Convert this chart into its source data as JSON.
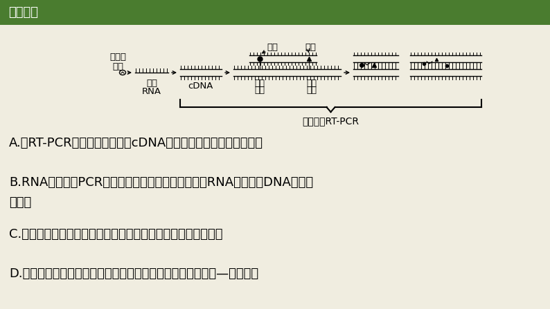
{
  "title": "知识必备",
  "title_bg_color": "#4a7c2f",
  "title_text_color": "#ffffff",
  "bg_color": "#f0ede0",
  "main_bg_color": "#f0ede0",
  "text_color": "#1a1a1a",
  "options": [
    "A.做RT-PCR之前，需要先根据cDNA的核苷酸序列合成引物和探针",
    "B.RNA不能作为PCR扩增的模板，故需要将样本中的RNA逆转录为DNA后再进\n行扩增",
    "C.若检测结果有强烈荧光信号发出，说明被检测者没有感染病毒",
    "D.病毒的检测还可以检测病毒引发产生的抗体，其原理是抗原—抗体杂交"
  ],
  "diagram_label": "实时荧光RT-PCR",
  "font_size_title": 13,
  "font_size_options": 13,
  "font_size_diagram": 9.5
}
